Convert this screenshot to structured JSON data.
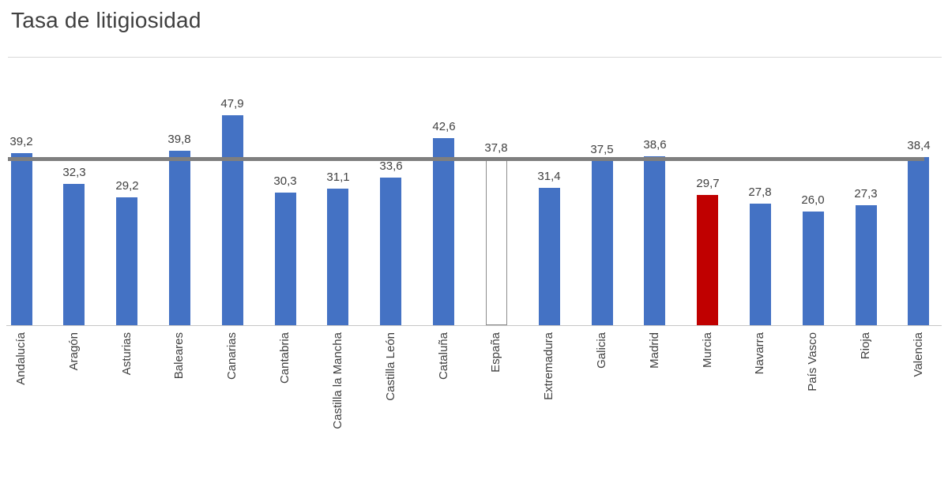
{
  "title": "Tasa de litigiosidad",
  "chart_data": {
    "type": "bar",
    "title": "Tasa de litigiosidad",
    "categories": [
      "Andalucía",
      "Aragón",
      "Asturias",
      "Baleares",
      "Canarias",
      "Cantabria",
      "Castilla la Mancha",
      "Castilla León",
      "Cataluña",
      "España",
      "Extremadura",
      "Galicia",
      "Madrid",
      "Murcia",
      "Navarra",
      "País Vasco",
      "Rioja",
      "Valencia"
    ],
    "values": [
      39.2,
      32.3,
      29.2,
      39.8,
      47.9,
      30.3,
      31.1,
      33.6,
      42.6,
      37.8,
      31.4,
      37.5,
      38.6,
      29.7,
      27.8,
      26.0,
      27.3,
      38.4
    ],
    "labels": [
      "39,2",
      "32,3",
      "29,2",
      "39,8",
      "47,9",
      "30,3",
      "31,1",
      "33,6",
      "42,6",
      "37,8",
      "31,4",
      "37,5",
      "38,6",
      "29,7",
      "27,8",
      "26,0",
      "27,3",
      "38,4"
    ],
    "xlabel": "",
    "ylabel": "",
    "ylim": [
      0,
      50
    ],
    "grid": false,
    "legend_position": "none",
    "bar_color": "#4472C4",
    "highlight_bar": {
      "category": "Murcia",
      "color": "#C00000"
    },
    "outline_bar": {
      "category": "España",
      "fill": "#ffffff",
      "border": "#8c8c8c"
    },
    "reference_line": {
      "value": 37.8,
      "color": "#7f7f7f"
    }
  }
}
